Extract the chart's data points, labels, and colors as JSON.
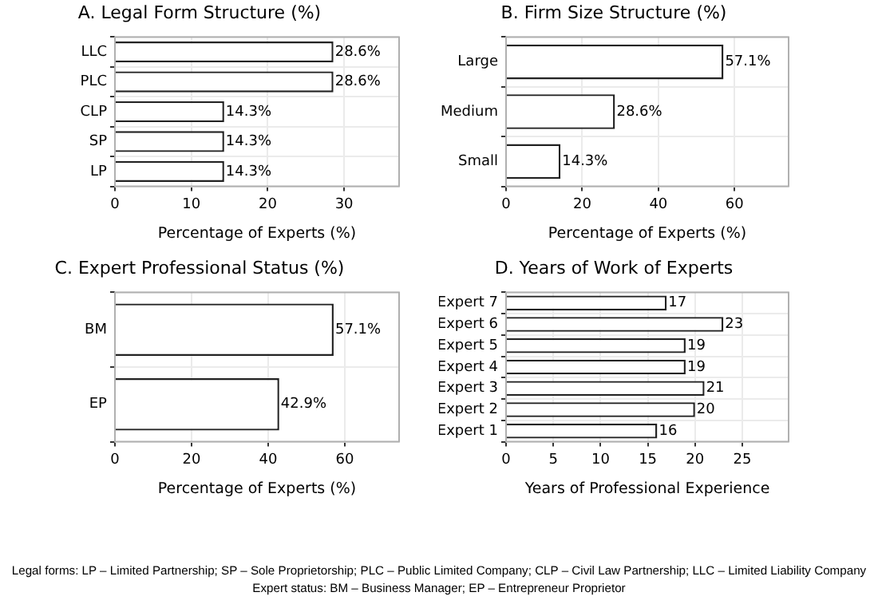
{
  "chart_data": [
    {
      "type": "bar",
      "orientation": "horizontal",
      "title": "A. Legal Form Structure (%)",
      "xlabel": "Percentage of Experts (%)",
      "categories": [
        "LLC",
        "PLC",
        "CLP",
        "SP",
        "LP"
      ],
      "values": [
        28.6,
        28.6,
        14.3,
        14.3,
        14.3
      ],
      "value_labels": [
        "28.6%",
        "28.6%",
        "14.3%",
        "14.3%",
        "14.3%"
      ],
      "color": "#ffffff",
      "xlim": [
        0,
        37.2
      ],
      "xticks": [
        0,
        10,
        20,
        30
      ],
      "grid": true
    },
    {
      "type": "bar",
      "orientation": "horizontal",
      "title": "B. Firm Size Structure (%)",
      "xlabel": "Percentage of Experts (%)",
      "categories": [
        "Large",
        "Medium",
        "Small"
      ],
      "values": [
        57.1,
        28.6,
        14.3
      ],
      "value_labels": [
        "57.1%",
        "28.6%",
        "14.3%"
      ],
      "color": "#ffffff",
      "xlim": [
        0,
        74.2
      ],
      "xticks": [
        0,
        20,
        40,
        60
      ],
      "grid": true
    },
    {
      "type": "bar",
      "orientation": "horizontal",
      "title": "C. Expert Professional Status (%)",
      "xlabel": "Percentage of Experts (%)",
      "categories": [
        "BM",
        "EP"
      ],
      "values": [
        57.1,
        42.9
      ],
      "value_labels": [
        "57.1%",
        "42.9%"
      ],
      "color": "#ffffff",
      "xlim": [
        0,
        74.2
      ],
      "xticks": [
        0,
        20,
        40,
        60
      ],
      "grid": true
    },
    {
      "type": "bar",
      "orientation": "horizontal",
      "title": "D. Years of Work of Experts",
      "xlabel": "Years of Professional Experience",
      "categories": [
        "Expert 7",
        "Expert 6",
        "Expert 5",
        "Expert 4",
        "Expert 3",
        "Expert 2",
        "Expert 1"
      ],
      "values": [
        17,
        23,
        19,
        19,
        21,
        20,
        16
      ],
      "data_labels": true,
      "color": "#ffffff",
      "xlim": [
        0,
        29.9
      ],
      "xticks": [
        0,
        5,
        10,
        15,
        20,
        25
      ],
      "grid": true,
      "annotations": [
        "Legal forms: LP – Limited Partnership; SP – Sole Proprietorship; PLC – Public Limited Company; CLP – Civil Law Partnership; LLC – Limited Liability Company",
        "Expert status: BM – Business Manager; EP – Entrepreneur Proprietor"
      ]
    }
  ]
}
